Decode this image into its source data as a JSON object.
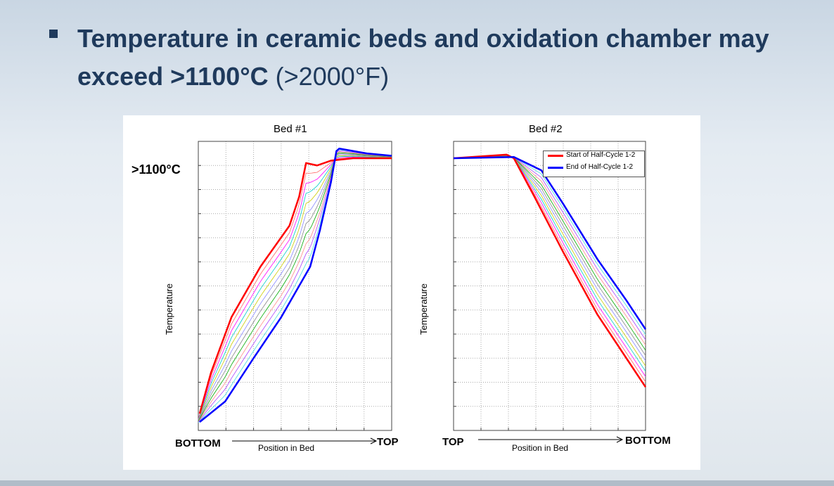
{
  "slide": {
    "bullet_text": "Temperature in ceramic beds and oxidation chamber may exceed",
    "highlight": ">1100°C",
    "suffix": "(>2000°F)"
  },
  "annotation": ">1100°C",
  "chart_data": [
    {
      "type": "line",
      "title": "Bed #1",
      "ylabel": "Temperature",
      "xlabel": "Position in Bed",
      "x_start_label": "BOTTOM",
      "x_end_label": "TOP",
      "xlim": [
        0,
        7
      ],
      "ylim": [
        0,
        12
      ],
      "grid": true,
      "series": [
        {
          "name": "Start of Half-Cycle 1-2",
          "color": "#ff0000",
          "points": [
            [
              0.05,
              0.7
            ],
            [
              0.46,
              2.4
            ],
            [
              1.2,
              4.7
            ],
            [
              2.25,
              6.8
            ],
            [
              3.3,
              8.5
            ],
            [
              3.65,
              9.7
            ],
            [
              3.9,
              11.1
            ],
            [
              4.3,
              11.0
            ],
            [
              4.8,
              11.2
            ],
            [
              5.6,
              11.3
            ],
            [
              7,
              11.3
            ]
          ]
        },
        {
          "name": "End of Half-Cycle 1-2",
          "color": "#0000ff",
          "points": [
            [
              0.05,
              0.35
            ],
            [
              0.97,
              1.2
            ],
            [
              2,
              3
            ],
            [
              3,
              4.7
            ],
            [
              4.05,
              6.8
            ],
            [
              4.4,
              8.3
            ],
            [
              4.8,
              10.3
            ],
            [
              5,
              11.6
            ],
            [
              5.1,
              11.7
            ],
            [
              6.1,
              11.5
            ],
            [
              7,
              11.4
            ]
          ]
        }
      ]
    },
    {
      "type": "line",
      "title": "Bed #2",
      "ylabel": "Temperature",
      "xlabel": "Position in Bed",
      "x_start_label": "TOP",
      "x_end_label": "BOTTOM",
      "xlim": [
        0,
        7
      ],
      "ylim": [
        0,
        12
      ],
      "grid": true,
      "legend": "top-right",
      "series": [
        {
          "name": "Start of Half-Cycle 1-2",
          "color": "#ff0000",
          "points": [
            [
              0,
              11.3
            ],
            [
              1.93,
              11.45
            ],
            [
              2.2,
              11.3
            ],
            [
              2.95,
              9.7
            ],
            [
              4,
              7.4
            ],
            [
              5.25,
              4.8
            ],
            [
              6.3,
              3
            ],
            [
              7,
              1.8
            ]
          ]
        },
        {
          "name": "End of Half-Cycle 1-2",
          "color": "#0000ff",
          "points": [
            [
              0,
              11.3
            ],
            [
              2.2,
              11.35
            ],
            [
              3.2,
              10.8
            ],
            [
              4,
              9.4
            ],
            [
              5.25,
              7.1
            ],
            [
              6.3,
              5.4
            ],
            [
              7,
              4.2
            ]
          ]
        }
      ]
    }
  ],
  "intermediate_colors": [
    "#ff6666",
    "#ff00ff",
    "#00cccc",
    "#cccc00",
    "#8888ff",
    "#888888",
    "#00aa00",
    "#ff8888",
    "#aa44ff",
    "#44dddd"
  ]
}
